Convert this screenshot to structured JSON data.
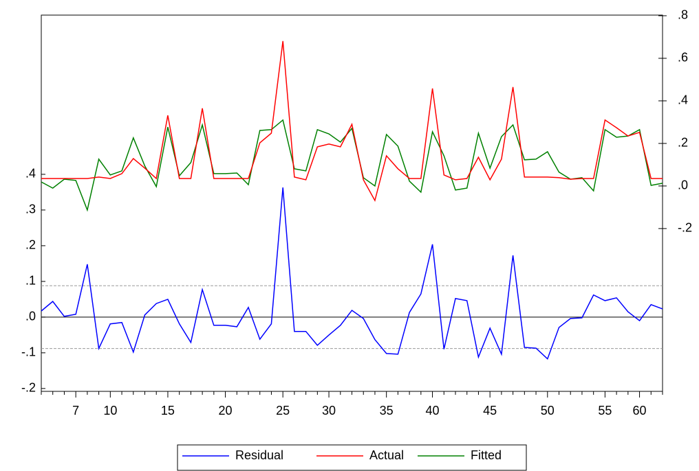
{
  "chart_data": {
    "type": "line",
    "categories": [
      null,
      null,
      null,
      "7",
      null,
      null,
      "10",
      null,
      null,
      null,
      null,
      "15",
      null,
      null,
      null,
      null,
      "20",
      null,
      null,
      null,
      null,
      "25",
      null,
      null,
      null,
      "30",
      null,
      null,
      null,
      null,
      "35",
      null,
      null,
      null,
      "40",
      null,
      null,
      null,
      null,
      "45",
      null,
      null,
      null,
      null,
      "50",
      null,
      null,
      null,
      null,
      "55",
      null,
      null,
      "60",
      null,
      null
    ],
    "series": [
      {
        "name": "Residual",
        "color": "#0000ff",
        "axis": "y",
        "values": [
          0.017,
          0.044,
          0.002,
          0.008,
          0.148,
          -0.088,
          -0.019,
          -0.015,
          -0.098,
          0.006,
          0.038,
          0.05,
          -0.019,
          -0.071,
          0.077,
          -0.023,
          -0.023,
          -0.027,
          0.027,
          -0.062,
          -0.019,
          0.363,
          -0.04,
          -0.04,
          -0.079,
          -0.05,
          -0.023,
          0.019,
          -0.004,
          -0.063,
          -0.102,
          -0.104,
          0.013,
          0.065,
          0.204,
          -0.09,
          0.052,
          0.046,
          -0.112,
          -0.031,
          -0.104,
          0.173,
          -0.085,
          -0.087,
          -0.117,
          -0.029,
          -0.004,
          -0.002,
          0.062,
          0.046,
          0.054,
          0.015,
          -0.01,
          0.035,
          0.023
        ]
      },
      {
        "name": "Actual",
        "color": "#ff0000",
        "axis": "y2",
        "values": [
          0.035,
          0.035,
          0.035,
          0.035,
          0.035,
          0.042,
          0.035,
          0.058,
          0.129,
          0.084,
          0.035,
          0.332,
          0.035,
          0.035,
          0.365,
          0.035,
          0.035,
          0.035,
          0.035,
          0.203,
          0.248,
          0.681,
          0.042,
          0.029,
          0.184,
          0.197,
          0.184,
          0.29,
          0.029,
          -0.068,
          0.142,
          0.081,
          0.035,
          0.035,
          0.458,
          0.052,
          0.029,
          0.035,
          0.135,
          0.029,
          0.126,
          0.465,
          0.042,
          0.042,
          0.042,
          0.039,
          0.032,
          0.035,
          0.035,
          0.31,
          0.274,
          0.235,
          0.252,
          0.035,
          0.035
        ]
      },
      {
        "name": "Fitted",
        "color": "#008000",
        "axis": "y2",
        "values": [
          0.019,
          -0.01,
          0.032,
          0.026,
          -0.113,
          0.126,
          0.052,
          0.071,
          0.226,
          0.094,
          -0.003,
          0.277,
          0.048,
          0.11,
          0.287,
          0.058,
          0.058,
          0.061,
          0.006,
          0.261,
          0.265,
          0.31,
          0.081,
          0.071,
          0.265,
          0.245,
          0.206,
          0.271,
          0.039,
          0.0,
          0.242,
          0.187,
          0.023,
          -0.029,
          0.255,
          0.142,
          -0.019,
          -0.01,
          0.248,
          0.084,
          0.232,
          0.287,
          0.123,
          0.126,
          0.161,
          0.065,
          0.032,
          0.039,
          -0.023,
          0.265,
          0.229,
          0.235,
          0.265,
          0.003,
          0.013
        ]
      }
    ],
    "ylim": [
      -0.208,
      0.846
    ],
    "yticks": [
      {
        "value": -0.2,
        "label": "-.2"
      },
      {
        "value": -0.1,
        "label": "-.1"
      },
      {
        "value": 0,
        "label": ".0"
      },
      {
        "value": 0.1,
        "label": ".1"
      },
      {
        "value": 0.2,
        "label": ".2"
      },
      {
        "value": 0.3,
        "label": ".3"
      },
      {
        "value": 0.4,
        "label": ".4"
      }
    ],
    "y2lim": [
      -0.965,
      0.803
    ],
    "y2ticks": [
      {
        "value": -0.2,
        "label": "-.2"
      },
      {
        "value": 0,
        "label": ".0"
      },
      {
        "value": 0.2,
        "label": ".2"
      },
      {
        "value": 0.4,
        "label": ".4"
      },
      {
        "value": 0.6,
        "label": ".6"
      },
      {
        "value": 0.8,
        "label": ".8"
      }
    ],
    "zero_line": 0,
    "reference_lines": [
      -0.088,
      0.088
    ],
    "legend": "bottom"
  }
}
